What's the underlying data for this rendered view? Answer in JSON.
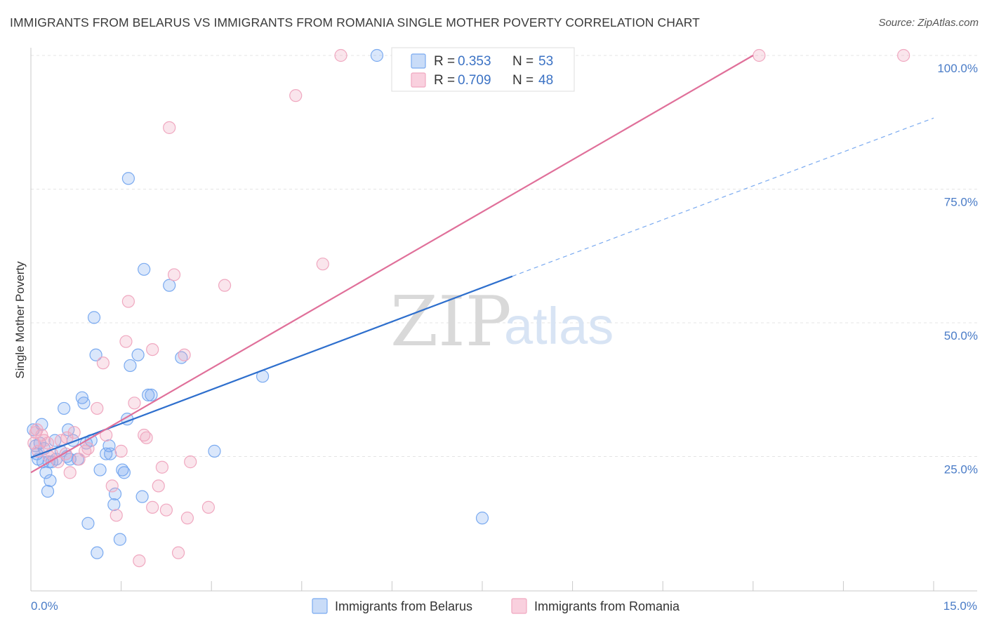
{
  "header": {
    "title": "IMMIGRANTS FROM BELARUS VS IMMIGRANTS FROM ROMANIA SINGLE MOTHER POVERTY CORRELATION CHART",
    "source": "Source: ZipAtlas.com"
  },
  "watermark": {
    "zip": "ZIP",
    "atlas": "atlas"
  },
  "chart_data": {
    "type": "scatter",
    "title": "IMMIGRANTS FROM BELARUS VS IMMIGRANTS FROM ROMANIA SINGLE MOTHER POVERTY CORRELATION CHART",
    "xlabel": "",
    "ylabel": "Single Mother Poverty",
    "xlim": [
      0,
      15
    ],
    "ylim": [
      0,
      100
    ],
    "x_tick_labels": [
      "0.0%",
      "15.0%"
    ],
    "y_ticks": [
      25,
      50,
      75,
      100
    ],
    "y_tick_labels": [
      "25.0%",
      "50.0%",
      "75.0%",
      "100.0%"
    ],
    "grid": true,
    "legend": {
      "position": "top-center",
      "entries": [
        {
          "r_label": "R =",
          "r": "0.353",
          "n_label": "N =",
          "n": "53"
        },
        {
          "r_label": "R =",
          "r": "0.709",
          "n_label": "N =",
          "n": "48"
        }
      ]
    },
    "series": [
      {
        "name": "Immigrants from Belarus",
        "color": "#7aaaf0",
        "line_color": "#2e6fcd",
        "trend": {
          "x0": 0.0,
          "y0": 24.8,
          "x1": 8.0,
          "y1": 58.7,
          "dash_x1": 15.0,
          "dash_y1": 88.3
        },
        "points": [
          [
            0.04,
            30.0
          ],
          [
            0.1,
            25.5
          ],
          [
            0.12,
            24.5
          ],
          [
            0.18,
            31.0
          ],
          [
            0.2,
            24.0
          ],
          [
            0.25,
            22.0
          ],
          [
            0.28,
            18.5
          ],
          [
            0.32,
            20.5
          ],
          [
            0.35,
            24.0
          ],
          [
            0.4,
            28.0
          ],
          [
            0.42,
            24.5
          ],
          [
            0.5,
            26.0
          ],
          [
            0.55,
            34.0
          ],
          [
            0.6,
            25.0
          ],
          [
            0.62,
            30.0
          ],
          [
            0.65,
            24.5
          ],
          [
            0.7,
            28.0
          ],
          [
            0.78,
            24.5
          ],
          [
            0.85,
            36.0
          ],
          [
            0.88,
            35.0
          ],
          [
            0.92,
            27.5
          ],
          [
            0.95,
            12.5
          ],
          [
            1.0,
            28.0
          ],
          [
            1.05,
            51.0
          ],
          [
            1.08,
            44.0
          ],
          [
            1.1,
            7.0
          ],
          [
            1.15,
            22.5
          ],
          [
            1.25,
            25.5
          ],
          [
            1.3,
            27.0
          ],
          [
            1.32,
            25.5
          ],
          [
            1.38,
            16.0
          ],
          [
            1.4,
            18.0
          ],
          [
            1.48,
            9.5
          ],
          [
            1.52,
            22.5
          ],
          [
            1.55,
            22.0
          ],
          [
            1.6,
            32.0
          ],
          [
            1.62,
            77.0
          ],
          [
            1.65,
            42.0
          ],
          [
            1.78,
            44.0
          ],
          [
            1.85,
            17.5
          ],
          [
            1.88,
            60.0
          ],
          [
            1.95,
            36.5
          ],
          [
            2.0,
            36.5
          ],
          [
            2.3,
            57.0
          ],
          [
            2.5,
            43.5
          ],
          [
            3.05,
            26.0
          ],
          [
            3.85,
            40.0
          ],
          [
            5.75,
            100.0
          ],
          [
            7.5,
            13.5
          ],
          [
            0.15,
            27.5
          ],
          [
            0.22,
            26.5
          ],
          [
            0.08,
            27.0
          ],
          [
            0.3,
            24.0
          ]
        ]
      },
      {
        "name": "Immigrants from Romania",
        "color": "#f0a8c0",
        "line_color": "#e0709a",
        "trend": {
          "x0": 0.0,
          "y0": 22.0,
          "x1": 12.0,
          "y1": 100.0
        },
        "points": [
          [
            0.05,
            27.5
          ],
          [
            0.1,
            30.0
          ],
          [
            0.12,
            26.0
          ],
          [
            0.18,
            29.0
          ],
          [
            0.22,
            28.0
          ],
          [
            0.3,
            25.0
          ],
          [
            0.35,
            25.5
          ],
          [
            0.45,
            24.0
          ],
          [
            0.5,
            28.0
          ],
          [
            0.58,
            25.5
          ],
          [
            0.65,
            22.0
          ],
          [
            0.72,
            29.5
          ],
          [
            0.8,
            24.5
          ],
          [
            0.9,
            26.0
          ],
          [
            0.95,
            26.5
          ],
          [
            1.1,
            34.0
          ],
          [
            1.2,
            42.5
          ],
          [
            1.25,
            29.0
          ],
          [
            1.35,
            19.5
          ],
          [
            1.42,
            14.0
          ],
          [
            1.5,
            26.0
          ],
          [
            1.58,
            46.5
          ],
          [
            1.62,
            54.0
          ],
          [
            1.72,
            35.0
          ],
          [
            1.8,
            5.5
          ],
          [
            1.88,
            29.0
          ],
          [
            1.92,
            28.5
          ],
          [
            2.02,
            15.5
          ],
          [
            2.02,
            45.0
          ],
          [
            2.12,
            19.5
          ],
          [
            2.18,
            23.0
          ],
          [
            2.25,
            15.0
          ],
          [
            2.3,
            86.5
          ],
          [
            2.38,
            59.0
          ],
          [
            2.45,
            7.0
          ],
          [
            2.55,
            44.0
          ],
          [
            2.6,
            13.5
          ],
          [
            2.65,
            24.0
          ],
          [
            2.95,
            15.5
          ],
          [
            3.22,
            57.0
          ],
          [
            4.4,
            92.5
          ],
          [
            4.85,
            61.0
          ],
          [
            5.15,
            100.0
          ],
          [
            12.1,
            100.0
          ],
          [
            14.5,
            100.0
          ],
          [
            0.08,
            29.5
          ],
          [
            0.28,
            27.5
          ],
          [
            0.6,
            28.5
          ]
        ]
      }
    ]
  }
}
